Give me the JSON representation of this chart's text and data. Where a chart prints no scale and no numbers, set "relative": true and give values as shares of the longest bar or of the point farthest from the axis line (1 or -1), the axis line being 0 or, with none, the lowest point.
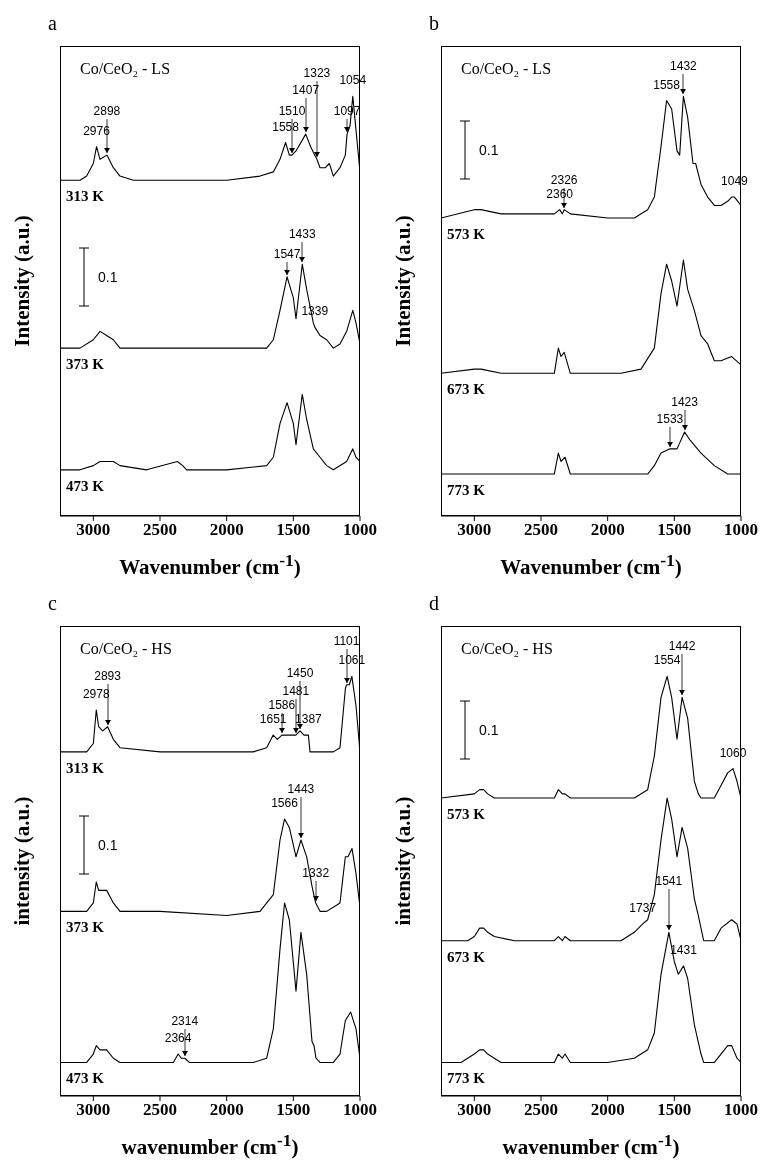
{
  "chart_data": [
    {
      "type": "line",
      "title": "a",
      "subtitle": "Co/CeO₂ - LS",
      "xlabel": "Wavenumber (cm$^{-1}$)",
      "ylabel": "Intensity (a.u.)",
      "xlim": [
        3250,
        1000
      ],
      "xticks": [
        3000,
        2500,
        2000,
        1500,
        1000
      ],
      "relative": true,
      "tick_labels": "x",
      "series": [
        {
          "name": "313 K",
          "color": "#000000",
          "x": [
            3250,
            3100,
            3050,
            3000,
            2976,
            2950,
            2898,
            2850,
            2800,
            2700,
            2500,
            2000,
            1750,
            1650,
            1600,
            1558,
            1530,
            1510,
            1480,
            1407,
            1370,
            1340,
            1323,
            1300,
            1260,
            1230,
            1200,
            1150,
            1110,
            1097,
            1075,
            1054,
            1030,
            1000
          ],
          "values": [
            0.8,
            0.8,
            0.81,
            0.84,
            0.88,
            0.85,
            0.86,
            0.83,
            0.81,
            0.8,
            0.8,
            0.8,
            0.81,
            0.82,
            0.85,
            0.89,
            0.86,
            0.86,
            0.87,
            0.91,
            0.88,
            0.86,
            0.85,
            0.83,
            0.83,
            0.84,
            0.81,
            0.83,
            0.86,
            0.91,
            0.93,
            1.0,
            0.92,
            0.82
          ]
        },
        {
          "name": "373 K",
          "color": "#000000",
          "x": [
            3250,
            3100,
            3000,
            2950,
            2900,
            2850,
            2800,
            2500,
            2000,
            1700,
            1650,
            1600,
            1547,
            1500,
            1480,
            1433,
            1400,
            1350,
            1339,
            1300,
            1250,
            1200,
            1150,
            1100,
            1054,
            1030,
            1000
          ],
          "values": [
            0.4,
            0.4,
            0.42,
            0.44,
            0.43,
            0.42,
            0.4,
            0.4,
            0.4,
            0.4,
            0.42,
            0.49,
            0.57,
            0.52,
            0.47,
            0.6,
            0.54,
            0.46,
            0.45,
            0.43,
            0.42,
            0.4,
            0.41,
            0.44,
            0.49,
            0.46,
            0.41
          ]
        },
        {
          "name": "473 K",
          "color": "#000000",
          "x": [
            3250,
            3100,
            3000,
            2950,
            2900,
            2850,
            2800,
            2600,
            2370,
            2330,
            2300,
            2000,
            1700,
            1650,
            1600,
            1547,
            1500,
            1480,
            1433,
            1400,
            1350,
            1300,
            1250,
            1200,
            1100,
            1054,
            1030,
            1000
          ],
          "values": [
            0.11,
            0.11,
            0.12,
            0.13,
            0.13,
            0.13,
            0.12,
            0.11,
            0.13,
            0.12,
            0.11,
            0.11,
            0.12,
            0.14,
            0.22,
            0.27,
            0.22,
            0.17,
            0.29,
            0.23,
            0.16,
            0.14,
            0.12,
            0.11,
            0.13,
            0.16,
            0.14,
            0.13
          ]
        }
      ],
      "annotations": [
        "0.1",
        {
          "text": "2976",
          "x": 2976,
          "y": 0.88
        },
        {
          "text": "2898",
          "x": 2898,
          "y": 0.86
        },
        {
          "text": "1558",
          "x": 1558,
          "y": 0.89
        },
        {
          "text": "1510",
          "x": 1510,
          "y": 0.86
        },
        {
          "text": "1407",
          "x": 1407,
          "y": 0.91
        },
        {
          "text": "1323",
          "x": 1323,
          "y": 0.85
        },
        {
          "text": "1054",
          "x": 1054,
          "y": 1.0
        },
        {
          "text": "1097",
          "x": 1097,
          "y": 0.91
        },
        {
          "text": "1547",
          "x": 1547,
          "y": 0.57
        },
        {
          "text": "1433",
          "x": 1433,
          "y": 0.6
        },
        {
          "text": "1339",
          "x": 1339,
          "y": 0.45
        }
      ]
    },
    {
      "type": "line",
      "title": "b",
      "subtitle": "Co/CeO₂ - LS",
      "xlabel": "Wavenumber (cm$^{-1}$)",
      "ylabel": "Intensity (a.u.)",
      "xlim": [
        3250,
        1000
      ],
      "xticks": [
        3000,
        2500,
        2000,
        1500,
        1000
      ],
      "relative": true,
      "tick_labels": "x",
      "series": [
        {
          "name": "573 K",
          "color": "#000000",
          "x": [
            3250,
            3000,
            2950,
            2800,
            2400,
            2360,
            2340,
            2326,
            2280,
            2000,
            1800,
            1700,
            1650,
            1600,
            1558,
            1520,
            1480,
            1460,
            1432,
            1400,
            1360,
            1340,
            1300,
            1250,
            1200,
            1150,
            1100,
            1070,
            1049,
            1000
          ],
          "values": [
            0.71,
            0.73,
            0.73,
            0.72,
            0.72,
            0.73,
            0.72,
            0.73,
            0.72,
            0.71,
            0.71,
            0.73,
            0.76,
            0.88,
            0.99,
            0.97,
            0.87,
            0.86,
            1.0,
            0.95,
            0.84,
            0.84,
            0.79,
            0.76,
            0.74,
            0.74,
            0.75,
            0.76,
            0.76,
            0.74
          ]
        },
        {
          "name": "673 K",
          "color": "#000000",
          "x": [
            3250,
            3000,
            2950,
            2800,
            2400,
            2370,
            2350,
            2326,
            2280,
            2000,
            1900,
            1750,
            1650,
            1600,
            1558,
            1520,
            1480,
            1432,
            1400,
            1350,
            1300,
            1250,
            1200,
            1150,
            1070,
            1000
          ],
          "values": [
            0.34,
            0.35,
            0.35,
            0.34,
            0.34,
            0.4,
            0.38,
            0.39,
            0.34,
            0.34,
            0.34,
            0.35,
            0.4,
            0.53,
            0.6,
            0.56,
            0.5,
            0.61,
            0.54,
            0.49,
            0.43,
            0.41,
            0.37,
            0.37,
            0.38,
            0.36
          ]
        },
        {
          "name": "773 K",
          "color": "#000000",
          "x": [
            3250,
            2500,
            2400,
            2370,
            2350,
            2320,
            2280,
            1800,
            1700,
            1650,
            1600,
            1533,
            1480,
            1423,
            1380,
            1300,
            1200,
            1100,
            1000
          ],
          "values": [
            0.1,
            0.1,
            0.1,
            0.15,
            0.13,
            0.14,
            0.1,
            0.1,
            0.1,
            0.12,
            0.15,
            0.16,
            0.16,
            0.2,
            0.18,
            0.15,
            0.12,
            0.1,
            0.1
          ]
        }
      ],
      "annotations": [
        "0.1",
        {
          "text": "2360",
          "x": 2360,
          "y": 0.73
        },
        {
          "text": "2326",
          "x": 2326,
          "y": 0.73
        },
        {
          "text": "1558",
          "x": 1558,
          "y": 0.99
        },
        {
          "text": "1432",
          "x": 1432,
          "y": 1.0
        },
        {
          "text": "1049",
          "x": 1049,
          "y": 0.76
        },
        {
          "text": "1533",
          "x": 1533,
          "y": 0.16
        },
        {
          "text": "1423",
          "x": 1423,
          "y": 0.2
        }
      ]
    },
    {
      "type": "line",
      "title": "c",
      "subtitle": "Co/CeO₂ - HS",
      "xlabel": "wavenumber (cm$^{-1}$)",
      "ylabel": "intensity (a.u.)",
      "xlim": [
        3250,
        1000
      ],
      "xticks": [
        3000,
        2500,
        2000,
        1500,
        1000
      ],
      "relative": true,
      "tick_labels": "x",
      "series": [
        {
          "name": "313 K",
          "color": "#000000",
          "x": [
            3250,
            3050,
            3000,
            2978,
            2960,
            2930,
            2893,
            2850,
            2800,
            2500,
            2150,
            2100,
            1950,
            1800,
            1700,
            1651,
            1620,
            1586,
            1560,
            1500,
            1481,
            1450,
            1420,
            1400,
            1387,
            1375,
            1200,
            1150,
            1110,
            1101,
            1080,
            1061,
            1030,
            1000
          ],
          "values": [
            0.82,
            0.82,
            0.84,
            0.92,
            0.88,
            0.87,
            0.88,
            0.85,
            0.83,
            0.82,
            0.82,
            0.82,
            0.82,
            0.82,
            0.83,
            0.86,
            0.85,
            0.86,
            0.86,
            0.86,
            0.86,
            0.87,
            0.86,
            0.86,
            0.86,
            0.82,
            0.82,
            0.83,
            0.97,
            0.98,
            0.98,
            1.0,
            0.93,
            0.82
          ]
        },
        {
          "name": "373 K",
          "color": "#000000",
          "x": [
            3250,
            3050,
            3000,
            2978,
            2960,
            2900,
            2850,
            2800,
            2500,
            2000,
            1750,
            1650,
            1600,
            1566,
            1530,
            1480,
            1443,
            1400,
            1360,
            1340,
            1332,
            1300,
            1250,
            1150,
            1110,
            1090,
            1060,
            1030,
            1000
          ],
          "values": [
            0.44,
            0.44,
            0.46,
            0.51,
            0.49,
            0.49,
            0.46,
            0.44,
            0.44,
            0.43,
            0.44,
            0.48,
            0.61,
            0.66,
            0.64,
            0.57,
            0.61,
            0.57,
            0.5,
            0.47,
            0.46,
            0.44,
            0.44,
            0.46,
            0.57,
            0.57,
            0.59,
            0.53,
            0.45
          ]
        },
        {
          "name": "473 K",
          "color": "#000000",
          "x": [
            3250,
            3050,
            3000,
            2978,
            2950,
            2900,
            2850,
            2800,
            2400,
            2364,
            2340,
            2314,
            2280,
            1800,
            1700,
            1650,
            1600,
            1566,
            1530,
            1480,
            1443,
            1400,
            1360,
            1345,
            1330,
            1300,
            1200,
            1150,
            1110,
            1070,
            1030,
            1000
          ],
          "values": [
            0.08,
            0.08,
            0.1,
            0.12,
            0.11,
            0.11,
            0.09,
            0.08,
            0.08,
            0.1,
            0.09,
            0.09,
            0.08,
            0.08,
            0.09,
            0.16,
            0.35,
            0.46,
            0.42,
            0.25,
            0.39,
            0.29,
            0.13,
            0.12,
            0.09,
            0.08,
            0.08,
            0.1,
            0.18,
            0.2,
            0.16,
            0.09
          ]
        }
      ],
      "annotations": [
        "0.1",
        {
          "text": "2978",
          "x": 2978,
          "y": 0.92
        },
        {
          "text": "2893",
          "x": 2893,
          "y": 0.88
        },
        {
          "text": "1061",
          "x": 1061,
          "y": 1.0
        },
        {
          "text": "1101",
          "x": 1101,
          "y": 0.98
        },
        {
          "text": "1651",
          "x": 1651,
          "y": 0.86
        },
        {
          "text": "1586",
          "x": 1586,
          "y": 0.86
        },
        {
          "text": "1481",
          "x": 1481,
          "y": 0.86
        },
        {
          "text": "1450",
          "x": 1450,
          "y": 0.87
        },
        {
          "text": "1387",
          "x": 1387,
          "y": 0.86
        },
        {
          "text": "1566",
          "x": 1566,
          "y": 0.66
        },
        {
          "text": "1443",
          "x": 1443,
          "y": 0.61
        },
        {
          "text": "1332",
          "x": 1332,
          "y": 0.46
        },
        {
          "text": "2364",
          "x": 2364,
          "y": 0.1
        },
        {
          "text": "2314",
          "x": 2314,
          "y": 0.09
        }
      ]
    },
    {
      "type": "line",
      "title": "d",
      "subtitle": "Co/CeO₂ - HS",
      "xlabel": "wavenumber (cm$^{-1}$)",
      "ylabel": "intensity (a.u.)",
      "xlim": [
        3250,
        1000
      ],
      "xticks": [
        3000,
        2500,
        2000,
        1500,
        1000
      ],
      "relative": true,
      "tick_labels": "x",
      "series": [
        {
          "name": "573 K",
          "color": "#000000",
          "x": [
            3250,
            3000,
            2960,
            2930,
            2900,
            2850,
            2700,
            2400,
            2370,
            2340,
            2320,
            2280,
            1800,
            1700,
            1650,
            1600,
            1554,
            1520,
            1480,
            1442,
            1400,
            1350,
            1320,
            1300,
            1200,
            1150,
            1100,
            1060,
            1030,
            1000
          ],
          "values": [
            0.71,
            0.72,
            0.73,
            0.73,
            0.72,
            0.71,
            0.71,
            0.71,
            0.73,
            0.72,
            0.72,
            0.71,
            0.71,
            0.73,
            0.81,
            0.95,
            1.0,
            0.95,
            0.85,
            0.95,
            0.9,
            0.75,
            0.72,
            0.71,
            0.71,
            0.74,
            0.77,
            0.78,
            0.75,
            0.71
          ]
        },
        {
          "name": "673 K",
          "color": "#000000",
          "x": [
            3250,
            3050,
            3000,
            2960,
            2930,
            2900,
            2850,
            2700,
            2400,
            2370,
            2340,
            2320,
            2280,
            2000,
            1900,
            1800,
            1737,
            1700,
            1650,
            1600,
            1554,
            1520,
            1480,
            1442,
            1400,
            1350,
            1320,
            1280,
            1200,
            1150,
            1070,
            1030,
            1000
          ],
          "values": [
            0.37,
            0.37,
            0.38,
            0.4,
            0.4,
            0.39,
            0.38,
            0.37,
            0.37,
            0.38,
            0.37,
            0.38,
            0.37,
            0.37,
            0.37,
            0.39,
            0.41,
            0.42,
            0.48,
            0.61,
            0.71,
            0.66,
            0.57,
            0.64,
            0.59,
            0.47,
            0.43,
            0.37,
            0.37,
            0.4,
            0.42,
            0.41,
            0.37
          ]
        },
        {
          "name": "773 K",
          "color": "#000000",
          "x": [
            3250,
            3100,
            3050,
            3000,
            2960,
            2930,
            2900,
            2850,
            2800,
            2400,
            2370,
            2340,
            2320,
            2280,
            2000,
            1800,
            1700,
            1650,
            1600,
            1541,
            1500,
            1470,
            1431,
            1400,
            1350,
            1300,
            1280,
            1200,
            1150,
            1100,
            1070,
            1030,
            1000
          ],
          "values": [
            0.08,
            0.08,
            0.09,
            0.1,
            0.11,
            0.11,
            0.1,
            0.09,
            0.08,
            0.08,
            0.1,
            0.09,
            0.1,
            0.08,
            0.08,
            0.09,
            0.11,
            0.15,
            0.29,
            0.39,
            0.32,
            0.29,
            0.31,
            0.28,
            0.17,
            0.1,
            0.08,
            0.08,
            0.1,
            0.12,
            0.12,
            0.09,
            0.08
          ]
        }
      ],
      "annotations": [
        "0.1",
        {
          "text": "1554",
          "x": 1554,
          "y": 1.0
        },
        {
          "text": "1442",
          "x": 1442,
          "y": 0.95
        },
        {
          "text": "1060",
          "x": 1060,
          "y": 0.78
        },
        {
          "text": "1737",
          "x": 1737,
          "y": 0.41
        },
        {
          "text": "1541",
          "x": 1541,
          "y": 0.39
        },
        {
          "text": "1431",
          "x": 1431,
          "y": 0.31
        }
      ]
    }
  ]
}
